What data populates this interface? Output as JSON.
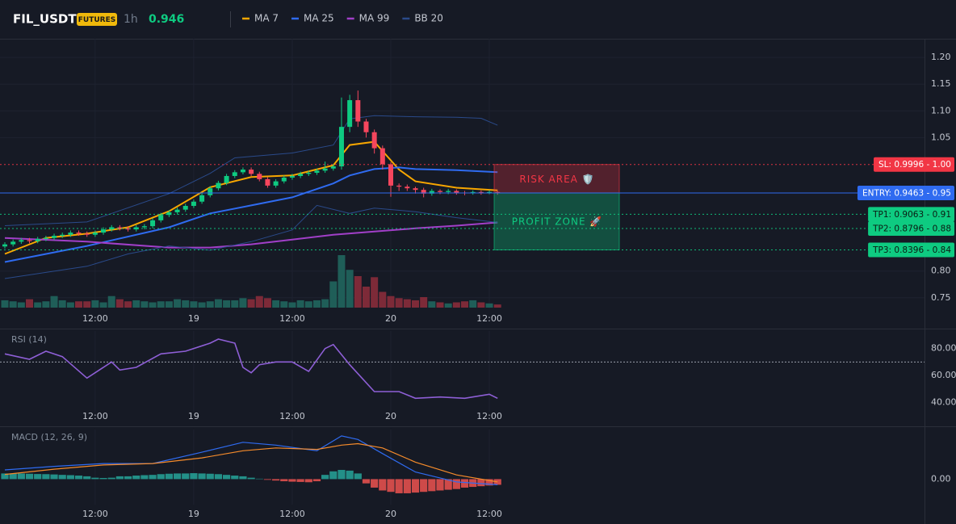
{
  "header": {
    "symbol": "FIL_USDT",
    "badge": "FUTURES",
    "interval": "1h",
    "price": "0.946",
    "legend": [
      {
        "name": "MA 7",
        "color": "#f7a600"
      },
      {
        "name": "MA 25",
        "color": "#2f6bf0"
      },
      {
        "name": "MA 99",
        "color": "#a13fc8"
      },
      {
        "name": "BB 20",
        "color": "#2a4a8a"
      }
    ]
  },
  "chart_data": [
    {
      "type": "candlestick",
      "categories": [
        null,
        null,
        null,
        null,
        null,
        null,
        null,
        null,
        null,
        null,
        null,
        "12:00",
        null,
        null,
        null,
        null,
        null,
        null,
        null,
        null,
        null,
        null,
        null,
        "19",
        null,
        null,
        null,
        null,
        null,
        null,
        null,
        null,
        null,
        null,
        null,
        "12:00",
        null,
        null,
        null,
        null,
        null,
        null,
        null,
        null,
        null,
        null,
        null,
        "20",
        null,
        null,
        null,
        null,
        null,
        null,
        null,
        null,
        null,
        null,
        null,
        "12:00",
        null
      ],
      "open": [
        0.846,
        0.85,
        0.855,
        0.858,
        0.856,
        0.86,
        0.862,
        0.866,
        0.868,
        0.872,
        0.87,
        0.868,
        0.872,
        0.878,
        0.882,
        0.88,
        0.878,
        0.882,
        0.884,
        0.895,
        0.905,
        0.91,
        0.915,
        0.922,
        0.93,
        0.942,
        0.955,
        0.965,
        0.978,
        0.985,
        0.99,
        0.982,
        0.972,
        0.96,
        0.968,
        0.975,
        0.978,
        0.982,
        0.984,
        0.988,
        0.992,
        0.996,
        1.07,
        1.12,
        1.08,
        1.06,
        1.03,
        1.0,
        0.96,
        0.958,
        0.955,
        0.952,
        0.945,
        0.95,
        0.948,
        0.95,
        0.947,
        0.946,
        0.948,
        0.947,
        0.948
      ],
      "high": [
        0.854,
        0.859,
        0.862,
        0.862,
        0.864,
        0.866,
        0.87,
        0.872,
        0.876,
        0.876,
        0.874,
        0.876,
        0.882,
        0.886,
        0.886,
        0.884,
        0.886,
        0.888,
        0.899,
        0.909,
        0.914,
        0.919,
        0.926,
        0.934,
        0.946,
        0.959,
        0.969,
        0.982,
        0.989,
        0.994,
        0.994,
        0.986,
        0.976,
        0.972,
        0.979,
        0.982,
        0.986,
        0.988,
        0.992,
        1.005,
        1.0,
        1.125,
        1.13,
        1.138,
        1.085,
        1.065,
        1.035,
        1.004,
        0.964,
        0.962,
        0.958,
        0.956,
        0.954,
        0.953,
        0.954,
        0.953,
        0.95,
        0.951,
        0.951,
        0.951,
        0.95
      ],
      "low": [
        0.842,
        0.846,
        0.851,
        0.852,
        0.852,
        0.856,
        0.858,
        0.862,
        0.864,
        0.866,
        0.864,
        0.864,
        0.868,
        0.874,
        0.876,
        0.874,
        0.874,
        0.878,
        0.88,
        0.891,
        0.901,
        0.906,
        0.911,
        0.918,
        0.926,
        0.938,
        0.951,
        0.961,
        0.974,
        0.981,
        0.978,
        0.968,
        0.956,
        0.956,
        0.964,
        0.971,
        0.974,
        0.978,
        0.98,
        0.984,
        0.988,
        0.99,
        1.06,
        1.07,
        1.05,
        1.02,
        0.99,
        0.939,
        0.95,
        0.95,
        0.945,
        0.938,
        0.941,
        0.944,
        0.944,
        0.943,
        0.942,
        0.943,
        0.943,
        0.944,
        0.943
      ],
      "close": [
        0.85,
        0.855,
        0.858,
        0.856,
        0.86,
        0.862,
        0.866,
        0.868,
        0.872,
        0.87,
        0.868,
        0.872,
        0.878,
        0.882,
        0.88,
        0.878,
        0.882,
        0.884,
        0.895,
        0.905,
        0.91,
        0.915,
        0.922,
        0.93,
        0.942,
        0.955,
        0.965,
        0.978,
        0.985,
        0.99,
        0.982,
        0.972,
        0.96,
        0.968,
        0.975,
        0.978,
        0.982,
        0.984,
        0.988,
        0.992,
        0.996,
        1.07,
        1.12,
        1.08,
        1.06,
        1.03,
        1.0,
        0.96,
        0.958,
        0.955,
        0.952,
        0.945,
        0.95,
        0.948,
        0.95,
        0.947,
        0.946,
        0.948,
        0.947,
        0.948,
        0.946
      ],
      "volume": [
        14,
        12,
        10,
        16,
        10,
        12,
        22,
        14,
        10,
        12,
        12,
        14,
        10,
        22,
        16,
        12,
        14,
        12,
        10,
        12,
        12,
        16,
        14,
        12,
        10,
        12,
        16,
        14,
        14,
        18,
        16,
        22,
        18,
        14,
        12,
        10,
        14,
        12,
        14,
        16,
        50,
        100,
        72,
        60,
        40,
        58,
        30,
        22,
        18,
        16,
        14,
        20,
        12,
        10,
        8,
        10,
        12,
        14,
        10,
        8,
        6
      ],
      "up_color": "#0ecb81",
      "down_color": "#f6465d",
      "series": [
        {
          "name": "MA 7",
          "color": "#f7a600",
          "x": [
            0,
            5,
            10,
            15,
            20,
            25,
            30,
            35,
            40,
            42,
            45,
            48,
            50,
            55,
            60
          ],
          "values": [
            0.832,
            0.862,
            0.87,
            0.882,
            0.912,
            0.957,
            0.976,
            0.979,
            0.998,
            1.036,
            1.042,
            0.99,
            0.968,
            0.956,
            0.951
          ]
        },
        {
          "name": "MA 25",
          "color": "#2f6bf0",
          "x": [
            0,
            10,
            20,
            25,
            30,
            35,
            40,
            42,
            45,
            48,
            50,
            55,
            60
          ],
          "values": [
            0.817,
            0.847,
            0.882,
            0.908,
            0.923,
            0.938,
            0.964,
            0.979,
            0.991,
            0.994,
            0.991,
            0.989,
            0.985
          ]
        },
        {
          "name": "MA 99",
          "color": "#a13fc8",
          "x": [
            0,
            10,
            20,
            25,
            30,
            35,
            40,
            45,
            50,
            55,
            60
          ],
          "values": [
            0.862,
            0.855,
            0.844,
            0.844,
            0.85,
            0.859,
            0.868,
            0.874,
            0.88,
            0.885,
            0.891
          ]
        },
        {
          "name": "BB 20",
          "color": "#2a4a8a",
          "x": [
            0,
            10,
            20,
            25,
            28,
            35,
            40,
            42,
            45,
            50,
            55,
            58,
            60
          ],
          "values": [
            0.885,
            0.892,
            0.945,
            0.983,
            1.012,
            1.021,
            1.036,
            1.085,
            1.091,
            1.089,
            1.088,
            1.086,
            1.073
          ]
        },
        {
          "name": "BB 20",
          "color": "#2a4a8a",
          "x": [
            0,
            10,
            15,
            20,
            25,
            30,
            35,
            38,
            42,
            45,
            50,
            55,
            60
          ],
          "values": [
            0.786,
            0.809,
            0.832,
            0.847,
            0.839,
            0.855,
            0.877,
            0.923,
            0.908,
            0.918,
            0.911,
            0.9,
            0.891
          ]
        }
      ],
      "levels": [
        {
          "value": 0.9996,
          "label": "SL: 0.9996 - 1.00",
          "color": "#f23645",
          "text_color": "#ffffff",
          "dash": true
        },
        {
          "value": 0.9463,
          "label": "ENTRY: 0.9463 - 0.95",
          "color": "#2f6bf0",
          "text_color": "#ffffff",
          "dash": false
        },
        {
          "value": 0.9063,
          "label": "TP1: 0.9063 - 0.91",
          "color": "#0ecb81",
          "text_color": "#0b1a12",
          "dash": true
        },
        {
          "value": 0.8796,
          "label": "TP2: 0.8796 - 0.88",
          "color": "#0ecb81",
          "text_color": "#0b1a12",
          "dash": true
        },
        {
          "value": 0.8396,
          "label": "TP3: 0.8396 - 0.84",
          "color": "#0ecb81",
          "text_color": "#0b1a12",
          "dash": true
        }
      ],
      "zones": [
        {
          "label": "RISK AREA 🛡️",
          "high": 0.9996,
          "low": 0.9463,
          "color": "#f23645"
        },
        {
          "label": "PROFIT ZONE 🚀",
          "high": 0.9463,
          "low": 0.8396,
          "color": "#0ecb81"
        }
      ],
      "ylim": [
        0.73,
        1.235
      ],
      "yticks": [
        {
          "value": 0.75,
          "label": "0.75"
        },
        {
          "value": 0.8,
          "label": "0.80"
        },
        {
          "value": 1.05,
          "label": "1.05"
        },
        {
          "value": 1.1,
          "label": "1.10"
        },
        {
          "value": 1.15,
          "label": "1.15"
        },
        {
          "value": 1.2,
          "label": "1.20"
        }
      ]
    },
    {
      "type": "line",
      "title": "RSI (14)",
      "color": "#8e5fd6",
      "x": [
        0,
        3,
        5,
        7,
        10,
        13,
        14,
        16,
        19,
        22,
        25,
        26,
        28,
        29,
        30,
        31,
        33,
        35,
        37,
        39,
        40,
        42,
        45,
        48,
        50,
        53,
        56,
        59,
        60
      ],
      "values": [
        76,
        72,
        78,
        74,
        58,
        70,
        64,
        66,
        76,
        78,
        84,
        87,
        84,
        66,
        62,
        68,
        70,
        70,
        63,
        80,
        83,
        68,
        48,
        48,
        43,
        44,
        43,
        46,
        43
      ],
      "levels": [
        70
      ],
      "ylim": [
        33,
        93
      ],
      "yticks": [
        {
          "value": 40,
          "label": "40.00"
        },
        {
          "value": 60,
          "label": "60.00"
        },
        {
          "value": 80,
          "label": "80.00"
        }
      ]
    },
    {
      "type": "macd",
      "title": "MACD (12, 26, 9)",
      "series": [
        {
          "color": "#2f6bf0",
          "x": [
            0,
            6,
            12,
            18,
            24,
            29,
            33,
            38,
            41,
            43,
            46,
            50,
            55,
            60
          ],
          "values": [
            0.0065,
            0.009,
            0.011,
            0.011,
            0.019,
            0.026,
            0.024,
            0.02,
            0.0305,
            0.028,
            0.018,
            0.005,
            -0.002,
            -0.004
          ]
        },
        {
          "color": "#f58b2b",
          "x": [
            0,
            6,
            12,
            18,
            24,
            29,
            33,
            38,
            41,
            43,
            46,
            50,
            55,
            60
          ],
          "values": [
            0.0033,
            0.007,
            0.01,
            0.011,
            0.015,
            0.02,
            0.022,
            0.021,
            0.024,
            0.025,
            0.022,
            0.012,
            0.003,
            -0.002
          ]
        }
      ],
      "histogram": [
        0.004,
        0.004,
        0.004,
        0.0038,
        0.0036,
        0.0035,
        0.0033,
        0.003,
        0.0028,
        0.0025,
        0.002,
        0.001,
        0.0008,
        0.001,
        0.002,
        0.002,
        0.0025,
        0.0028,
        0.003,
        0.0035,
        0.0038,
        0.004,
        0.004,
        0.0042,
        0.004,
        0.0038,
        0.0035,
        0.003,
        0.0025,
        0.002,
        0.001,
        0.0003,
        -0.0005,
        -0.001,
        -0.0015,
        -0.0018,
        -0.002,
        -0.0022,
        -0.0015,
        0.003,
        0.0055,
        0.0065,
        0.006,
        0.004,
        -0.003,
        -0.006,
        -0.008,
        -0.009,
        -0.01,
        -0.01,
        -0.0095,
        -0.009,
        -0.0085,
        -0.008,
        -0.0075,
        -0.007,
        -0.006,
        -0.0055,
        -0.005,
        -0.0045,
        -0.004
      ],
      "up_color": "#26a69a",
      "down_color": "#ef5350",
      "ylim": [
        -0.018,
        0.035
      ],
      "yticks": [
        {
          "value": 0,
          "label": "0.00"
        }
      ]
    }
  ]
}
